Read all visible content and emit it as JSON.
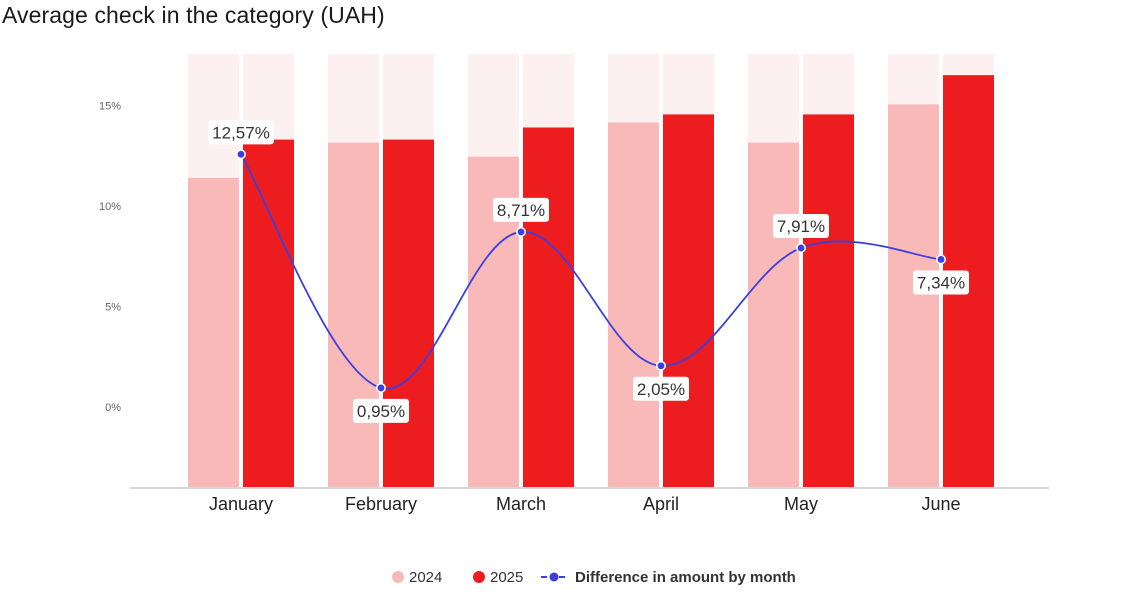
{
  "chart_data": {
    "type": "bar",
    "title": "Average check in the category (UAH)",
    "categories": [
      "January",
      "February",
      "March",
      "April",
      "May",
      "June"
    ],
    "series": [
      {
        "name": "2024",
        "kind": "bar",
        "color": "#f9b9b9",
        "values": [
          307,
          342,
          328,
          362,
          342,
          380
        ]
      },
      {
        "name": "2025",
        "kind": "bar",
        "color": "#ed1c1f",
        "values": [
          345,
          345,
          357,
          370,
          370,
          409
        ]
      },
      {
        "name": "Difference in amount by month",
        "kind": "line",
        "color": "#3b3fe0",
        "values": [
          12.57,
          0.95,
          8.71,
          2.05,
          7.91,
          7.34
        ],
        "labels": [
          "12,57%",
          "0,95%",
          "8,71%",
          "2,05%",
          "7,91%",
          "7,34%"
        ]
      }
    ],
    "bar_max": 430,
    "bar_background_color": "#fdf0f0",
    "y_ticks": [
      "0%",
      "5%",
      "10%",
      "15%"
    ],
    "y_tick_values": [
      0,
      5,
      10,
      15
    ],
    "legend_position": "bottom-center",
    "legend": [
      "2024",
      "2025",
      "Difference in amount by month"
    ]
  }
}
